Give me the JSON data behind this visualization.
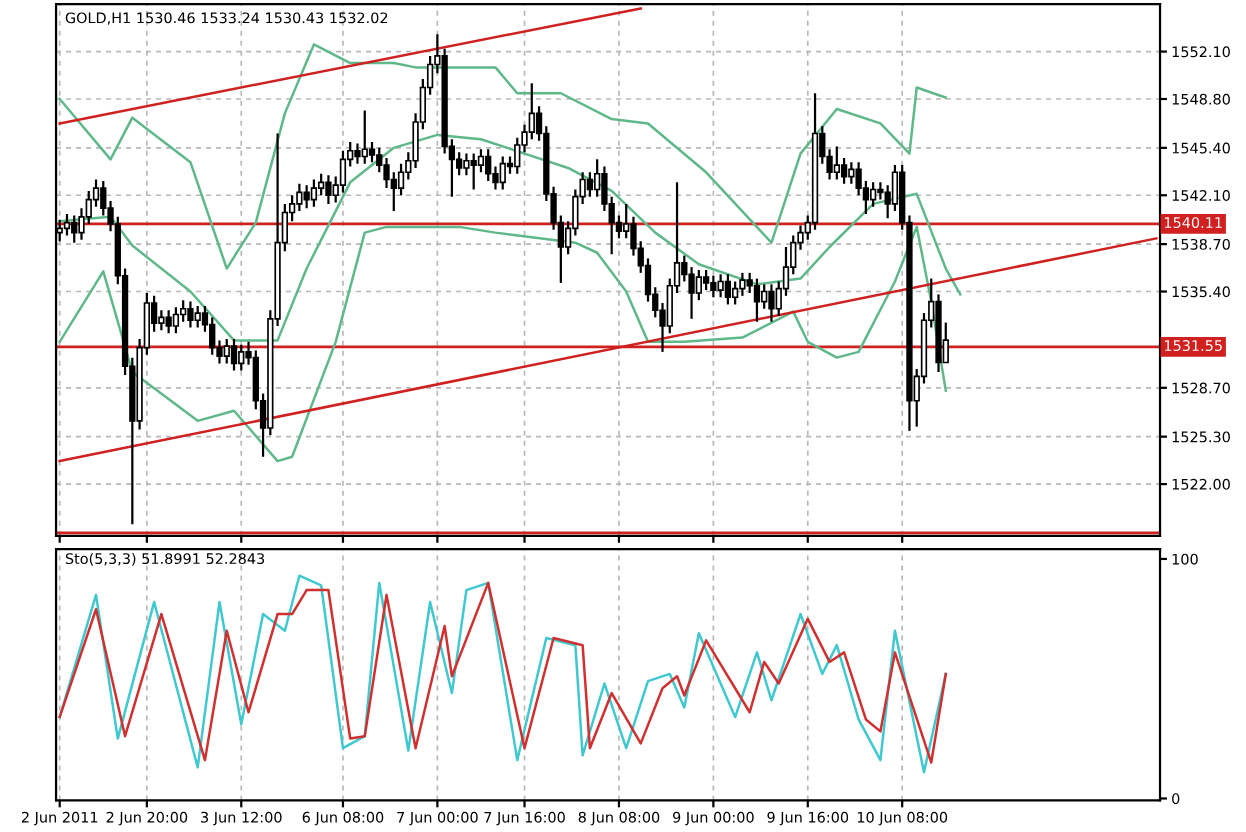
{
  "chart_data": [
    {
      "type": "candlestick",
      "title": "GOLD,H1 1530.46 1533.24 1530.43 1532.02",
      "categories": [
        null,
        null,
        null,
        null,
        null,
        null,
        null,
        null,
        null,
        null,
        null,
        null,
        null,
        null,
        null,
        null,
        null,
        null,
        null,
        null,
        null,
        null,
        null,
        null,
        null,
        null,
        null,
        null,
        null,
        null,
        null,
        null,
        null,
        null,
        null,
        null,
        null,
        null,
        null,
        null,
        null,
        null,
        null,
        null,
        null,
        null,
        null,
        null,
        null,
        null,
        null,
        null,
        null,
        null,
        null,
        null,
        null,
        null,
        null,
        null,
        null,
        null,
        null,
        null,
        null,
        null,
        null,
        null,
        null,
        null,
        null,
        null,
        null,
        null,
        null,
        null,
        null,
        null,
        null,
        null,
        null,
        null,
        null,
        null,
        null,
        null,
        null,
        null,
        null,
        null,
        null,
        null,
        null,
        null,
        null,
        null,
        null,
        null,
        null,
        null,
        null,
        null,
        null,
        null,
        null,
        null,
        null,
        null,
        null,
        null,
        null,
        null,
        null,
        null,
        null,
        null,
        null,
        null,
        null,
        null,
        null,
        null,
        null,
        null,
        null,
        null,
        null,
        null,
        null,
        null,
        null,
        null,
        null,
        null,
        null,
        null,
        null,
        null,
        null,
        null,
        null,
        null,
        null,
        null,
        null,
        null,
        null,
        null,
        null,
        null,
        null,
        null
      ],
      "ohlc": [
        [
          1539.5,
          1540.4,
          1538.9,
          1539.8
        ],
        [
          1539.8,
          1540.8,
          1539.3,
          1540.2
        ],
        [
          1540.2,
          1540.7,
          1538.8,
          1539.5
        ],
        [
          1539.5,
          1541.2,
          1539.0,
          1540.6
        ],
        [
          1540.6,
          1542.4,
          1540.1,
          1541.8
        ],
        [
          1541.8,
          1543.2,
          1541.3,
          1542.6
        ],
        [
          1542.6,
          1543.1,
          1540.7,
          1541.2
        ],
        [
          1541.2,
          1541.7,
          1539.6,
          1540.1
        ],
        [
          1540.1,
          1540.6,
          1535.9,
          1536.5
        ],
        [
          1536.5,
          1537.0,
          1529.6,
          1530.2
        ],
        [
          1530.2,
          1530.8,
          1519.2,
          1526.4
        ],
        [
          1526.4,
          1532.1,
          1525.8,
          1531.5
        ],
        [
          1531.5,
          1535.3,
          1531.0,
          1534.6
        ],
        [
          1534.6,
          1535.1,
          1532.6,
          1533.2
        ],
        [
          1533.2,
          1534.1,
          1532.7,
          1533.6
        ],
        [
          1533.6,
          1534.1,
          1532.5,
          1533.0
        ],
        [
          1533.0,
          1534.3,
          1532.5,
          1533.8
        ],
        [
          1533.8,
          1534.8,
          1533.3,
          1534.2
        ],
        [
          1534.2,
          1534.7,
          1532.9,
          1533.4
        ],
        [
          1533.4,
          1534.4,
          1532.9,
          1533.9
        ],
        [
          1533.9,
          1534.4,
          1532.6,
          1533.1
        ],
        [
          1533.1,
          1533.6,
          1531.0,
          1531.5
        ],
        [
          1531.5,
          1532.0,
          1530.4,
          1530.9
        ],
        [
          1530.9,
          1532.1,
          1530.4,
          1531.6
        ],
        [
          1531.6,
          1532.1,
          1529.9,
          1530.4
        ],
        [
          1530.4,
          1531.7,
          1529.9,
          1531.2
        ],
        [
          1531.2,
          1531.9,
          1530.3,
          1530.8
        ],
        [
          1530.8,
          1531.3,
          1527.2,
          1527.8
        ],
        [
          1527.8,
          1528.3,
          1523.9,
          1525.9
        ],
        [
          1525.9,
          1534.1,
          1525.4,
          1533.5
        ],
        [
          1533.5,
          1546.4,
          1533.0,
          1538.8
        ],
        [
          1538.8,
          1541.5,
          1538.2,
          1540.9
        ],
        [
          1540.9,
          1542.1,
          1540.3,
          1541.5
        ],
        [
          1541.5,
          1542.9,
          1541.0,
          1542.3
        ],
        [
          1542.3,
          1542.8,
          1541.2,
          1541.8
        ],
        [
          1541.8,
          1543.2,
          1541.3,
          1542.6
        ],
        [
          1542.6,
          1543.6,
          1542.1,
          1543.0
        ],
        [
          1543.0,
          1543.5,
          1541.5,
          1542.1
        ],
        [
          1542.1,
          1543.4,
          1541.6,
          1542.8
        ],
        [
          1542.8,
          1545.2,
          1542.3,
          1544.6
        ],
        [
          1544.6,
          1545.8,
          1544.1,
          1545.2
        ],
        [
          1545.2,
          1545.7,
          1544.3,
          1544.8
        ],
        [
          1544.8,
          1548.0,
          1544.3,
          1545.3
        ],
        [
          1545.3,
          1545.8,
          1544.4,
          1544.9
        ],
        [
          1544.9,
          1545.4,
          1543.7,
          1544.2
        ],
        [
          1544.2,
          1544.7,
          1542.6,
          1543.2
        ],
        [
          1543.2,
          1543.7,
          1541.0,
          1542.6
        ],
        [
          1542.6,
          1544.3,
          1542.1,
          1543.7
        ],
        [
          1543.7,
          1545.1,
          1543.2,
          1544.5
        ],
        [
          1544.5,
          1547.8,
          1544.0,
          1547.2
        ],
        [
          1547.2,
          1550.2,
          1546.7,
          1549.6
        ],
        [
          1549.6,
          1551.8,
          1549.1,
          1551.2
        ],
        [
          1551.2,
          1553.3,
          1550.6,
          1551.8
        ],
        [
          1551.8,
          1552.3,
          1545.0,
          1545.5
        ],
        [
          1545.5,
          1546.0,
          1542.0,
          1544.6
        ],
        [
          1544.6,
          1545.1,
          1543.5,
          1544.0
        ],
        [
          1544.0,
          1545.0,
          1543.5,
          1544.5
        ],
        [
          1544.5,
          1545.0,
          1542.5,
          1544.2
        ],
        [
          1544.2,
          1545.3,
          1543.7,
          1544.8
        ],
        [
          1544.8,
          1545.3,
          1543.1,
          1543.6
        ],
        [
          1543.6,
          1544.1,
          1542.5,
          1543.0
        ],
        [
          1543.0,
          1544.8,
          1542.5,
          1544.3
        ],
        [
          1544.3,
          1544.8,
          1543.6,
          1544.1
        ],
        [
          1544.1,
          1546.1,
          1543.6,
          1545.6
        ],
        [
          1545.6,
          1547.0,
          1545.1,
          1546.5
        ],
        [
          1546.5,
          1549.9,
          1546.0,
          1547.8
        ],
        [
          1547.8,
          1548.3,
          1545.9,
          1546.4
        ],
        [
          1546.4,
          1546.9,
          1541.7,
          1542.2
        ],
        [
          1542.2,
          1542.7,
          1539.7,
          1540.2
        ],
        [
          1540.2,
          1540.7,
          1536.0,
          1538.5
        ],
        [
          1538.5,
          1540.3,
          1538.0,
          1539.8
        ],
        [
          1539.8,
          1542.5,
          1539.3,
          1542.0
        ],
        [
          1542.0,
          1543.7,
          1541.5,
          1543.2
        ],
        [
          1543.2,
          1543.7,
          1542.0,
          1542.5
        ],
        [
          1542.5,
          1544.6,
          1542.0,
          1543.6
        ],
        [
          1543.6,
          1544.1,
          1541.0,
          1541.5
        ],
        [
          1541.5,
          1542.0,
          1538.0,
          1540.2
        ],
        [
          1540.2,
          1540.7,
          1539.1,
          1539.6
        ],
        [
          1539.6,
          1541.5,
          1539.1,
          1540.1
        ],
        [
          1540.1,
          1540.6,
          1537.9,
          1538.4
        ],
        [
          1538.4,
          1538.9,
          1536.7,
          1537.2
        ],
        [
          1537.2,
          1537.7,
          1534.7,
          1535.2
        ],
        [
          1535.2,
          1535.7,
          1533.6,
          1534.1
        ],
        [
          1534.1,
          1534.6,
          1531.2,
          1533.0
        ],
        [
          1533.0,
          1536.3,
          1532.5,
          1535.8
        ],
        [
          1535.8,
          1543.0,
          1535.3,
          1537.4
        ],
        [
          1537.4,
          1537.9,
          1536.1,
          1536.6
        ],
        [
          1536.6,
          1537.1,
          1533.5,
          1535.3
        ],
        [
          1535.3,
          1536.9,
          1534.8,
          1536.4
        ],
        [
          1536.4,
          1536.9,
          1535.5,
          1536.0
        ],
        [
          1536.0,
          1536.5,
          1535.0,
          1535.5
        ],
        [
          1535.5,
          1536.6,
          1535.0,
          1536.1
        ],
        [
          1536.1,
          1536.6,
          1534.5,
          1535.0
        ],
        [
          1535.0,
          1536.1,
          1534.5,
          1535.6
        ],
        [
          1535.6,
          1536.7,
          1535.1,
          1536.2
        ],
        [
          1536.2,
          1536.7,
          1535.3,
          1535.8
        ],
        [
          1535.8,
          1536.3,
          1533.3,
          1534.7
        ],
        [
          1534.7,
          1535.9,
          1534.2,
          1535.4
        ],
        [
          1535.4,
          1535.9,
          1533.3,
          1534.2
        ],
        [
          1534.2,
          1536.1,
          1533.7,
          1535.6
        ],
        [
          1535.6,
          1538.5,
          1535.1,
          1537.1
        ],
        [
          1537.1,
          1539.3,
          1536.6,
          1538.8
        ],
        [
          1538.8,
          1540.0,
          1538.3,
          1539.5
        ],
        [
          1539.5,
          1540.7,
          1539.0,
          1540.2
        ],
        [
          1540.2,
          1549.2,
          1539.7,
          1546.4
        ],
        [
          1546.4,
          1546.9,
          1544.3,
          1544.8
        ],
        [
          1544.8,
          1545.3,
          1543.2,
          1543.7
        ],
        [
          1543.7,
          1545.5,
          1543.2,
          1544.2
        ],
        [
          1544.2,
          1544.7,
          1542.9,
          1543.4
        ],
        [
          1543.4,
          1544.4,
          1542.9,
          1543.9
        ],
        [
          1543.9,
          1544.4,
          1542.1,
          1542.6
        ],
        [
          1542.6,
          1543.1,
          1540.8,
          1541.8
        ],
        [
          1541.8,
          1543.0,
          1541.3,
          1542.5
        ],
        [
          1542.5,
          1543.0,
          1541.8,
          1542.3
        ],
        [
          1542.3,
          1542.8,
          1540.5,
          1541.5
        ],
        [
          1541.5,
          1544.2,
          1541.0,
          1543.7
        ],
        [
          1543.7,
          1544.2,
          1539.7,
          1540.2
        ],
        [
          1540.2,
          1540.7,
          1525.7,
          1527.8
        ],
        [
          1527.8,
          1530.0,
          1526.0,
          1529.5
        ],
        [
          1529.5,
          1533.9,
          1529.0,
          1533.4
        ],
        [
          1533.4,
          1536.3,
          1532.9,
          1534.7
        ],
        [
          1534.7,
          1535.2,
          1529.8,
          1530.46
        ],
        [
          1530.46,
          1533.24,
          1530.43,
          1532.02
        ],
        null,
        null,
        null,
        null,
        null,
        null,
        null,
        null,
        null,
        null,
        null,
        null,
        null,
        null,
        null,
        null,
        null,
        null,
        null,
        null,
        null,
        null,
        null,
        null,
        null,
        null,
        null,
        null,
        null
      ],
      "series": [
        {
          "type": "line",
          "color": "#5fb88a",
          "values": [
            1548.8,
            null,
            null,
            null,
            null,
            null,
            null,
            1544.6,
            null,
            null,
            1547.5,
            null,
            null,
            null,
            null,
            null,
            null,
            null,
            1544.4,
            null,
            null,
            null,
            null,
            1537.0,
            null,
            null,
            null,
            1540.2,
            null,
            null,
            null,
            1547.8,
            null,
            null,
            null,
            1552.6,
            null,
            null,
            null,
            null,
            1551.3,
            null,
            null,
            null,
            null,
            null,
            1551.3,
            null,
            null,
            1551.0,
            null,
            null,
            null,
            null,
            null,
            null,
            null,
            null,
            null,
            null,
            1551.0,
            null,
            null,
            1549.2,
            null,
            null,
            null,
            null,
            null,
            1549.2,
            null,
            null,
            null,
            null,
            null,
            null,
            1547.4,
            null,
            null,
            null,
            null,
            1547.1,
            null,
            null,
            null,
            null,
            null,
            null,
            null,
            1543.7,
            null,
            null,
            null,
            null,
            null,
            null,
            null,
            null,
            1538.8,
            null,
            null,
            null,
            1545.0,
            null,
            null,
            null,
            null,
            1548.1,
            null,
            null,
            null,
            null,
            null,
            1547.1,
            null,
            null,
            null,
            1545.0,
            1549.6,
            null,
            null,
            null,
            1548.9,
            null,
            null,
            null,
            null,
            null,
            null,
            null,
            null,
            null,
            null,
            null,
            null,
            null,
            null,
            null,
            null,
            null,
            null,
            null,
            null,
            null,
            null,
            null,
            null,
            null,
            null,
            null,
            null,
            null
          ]
        },
        {
          "type": "line",
          "color": "#5fb88a",
          "values": [
            1540.3,
            null,
            null,
            null,
            null,
            null,
            null,
            1540.6,
            null,
            null,
            1538.6,
            null,
            null,
            null,
            null,
            null,
            null,
            null,
            1535.4,
            null,
            null,
            null,
            null,
            null,
            1532.0,
            null,
            null,
            null,
            null,
            null,
            1532.0,
            null,
            null,
            null,
            1537.0,
            null,
            null,
            null,
            null,
            null,
            1543.0,
            null,
            null,
            null,
            null,
            null,
            1545.4,
            null,
            null,
            null,
            null,
            null,
            1546.3,
            null,
            null,
            null,
            null,
            null,
            1546.0,
            null,
            null,
            null,
            null,
            null,
            1545.0,
            null,
            null,
            null,
            null,
            null,
            1544.0,
            null,
            null,
            null,
            null,
            null,
            1542.4,
            null,
            null,
            null,
            null,
            null,
            1539.5,
            null,
            null,
            null,
            null,
            null,
            1537.3,
            null,
            null,
            null,
            null,
            null,
            null,
            null,
            1535.9,
            null,
            null,
            null,
            null,
            null,
            1536.3,
            null,
            null,
            null,
            1538.5,
            null,
            null,
            null,
            null,
            null,
            1541.5,
            null,
            null,
            null,
            null,
            null,
            1542.2,
            null,
            null,
            null,
            1537.0,
            null,
            1535.2,
            null,
            null,
            null,
            null,
            null,
            null,
            null,
            null,
            null,
            null,
            null,
            null,
            null,
            null,
            null,
            null,
            null,
            null,
            null,
            null,
            null,
            null,
            null,
            null,
            null,
            null,
            null
          ]
        },
        {
          "type": "line",
          "color": "#5fb88a",
          "values": [
            1531.9,
            null,
            null,
            null,
            null,
            null,
            1536.8,
            null,
            null,
            null,
            1529.8,
            null,
            null,
            null,
            null,
            null,
            null,
            null,
            null,
            1526.4,
            null,
            null,
            null,
            null,
            1527.1,
            null,
            null,
            null,
            null,
            null,
            1523.6,
            null,
            1523.9,
            null,
            null,
            null,
            null,
            null,
            1531.9,
            null,
            null,
            null,
            1539.5,
            null,
            null,
            1539.9,
            null,
            null,
            null,
            null,
            null,
            null,
            null,
            null,
            null,
            1539.9,
            null,
            null,
            null,
            null,
            1539.5,
            null,
            null,
            null,
            null,
            null,
            null,
            null,
            null,
            null,
            null,
            1538.8,
            null,
            null,
            1538.1,
            null,
            null,
            null,
            1535.4,
            null,
            null,
            1531.9,
            null,
            null,
            null,
            null,
            1531.9,
            null,
            null,
            null,
            null,
            null,
            null,
            null,
            1532.2,
            null,
            null,
            null,
            null,
            null,
            null,
            1534.0,
            null,
            1531.9,
            null,
            null,
            null,
            1530.8,
            null,
            null,
            1531.2,
            null,
            null,
            null,
            null,
            1536.1,
            null,
            null,
            1539.9,
            null,
            1534.7,
            null,
            1528.5,
            null,
            null,
            null,
            null,
            null,
            null,
            null,
            null,
            null,
            null,
            null,
            null,
            null,
            null,
            null,
            null,
            null,
            null,
            null,
            null,
            null,
            null,
            null,
            null,
            null,
            null,
            null,
            null,
            null
          ]
        },
        {
          "type": "line",
          "color": "#d02020",
          "values": [
            1547.1,
            null,
            null,
            null,
            null,
            null,
            null,
            null,
            null,
            null,
            null,
            null,
            null,
            null,
            null,
            null,
            null,
            null,
            null,
            null,
            null,
            null,
            null,
            null,
            null,
            null,
            null,
            null,
            null,
            null,
            null,
            null,
            null,
            null,
            null,
            null,
            null,
            null,
            null,
            null,
            null,
            null,
            null,
            null,
            null,
            null,
            null,
            null,
            null,
            null,
            null,
            null,
            null,
            null,
            null,
            null,
            null,
            null,
            null,
            null,
            null,
            null,
            null,
            null,
            null,
            null,
            null,
            null,
            null,
            null,
            null,
            null,
            null,
            null,
            null,
            null,
            null,
            null,
            null,
            null,
            1555.1,
            null,
            null,
            null,
            null,
            null,
            null,
            null,
            null,
            null,
            null,
            null,
            null,
            null,
            null,
            null,
            null,
            null,
            null,
            null,
            null,
            null,
            null,
            null,
            null,
            null,
            null,
            null,
            null,
            null,
            null,
            null,
            null,
            null,
            null,
            null,
            null,
            null,
            null,
            null,
            null,
            null,
            null,
            null,
            null,
            null,
            null,
            null,
            null,
            null,
            null,
            null,
            null,
            null,
            null,
            null,
            null,
            null,
            null,
            null,
            null,
            null,
            null,
            null,
            null,
            null,
            null,
            null,
            null,
            null,
            null,
            null
          ]
        },
        {
          "type": "line",
          "color": "#d02020",
          "values": [
            1523.6,
            null,
            null,
            null,
            null,
            null,
            null,
            null,
            null,
            null,
            null,
            null,
            null,
            null,
            null,
            null,
            null,
            null,
            null,
            null,
            null,
            null,
            null,
            null,
            null,
            null,
            null,
            null,
            null,
            null,
            null,
            null,
            null,
            null,
            null,
            null,
            null,
            null,
            null,
            null,
            null,
            null,
            null,
            null,
            null,
            null,
            null,
            null,
            null,
            null,
            null,
            null,
            null,
            null,
            null,
            null,
            null,
            null,
            null,
            null,
            null,
            null,
            null,
            null,
            null,
            null,
            null,
            null,
            null,
            null,
            null,
            null,
            null,
            null,
            null,
            null,
            null,
            null,
            null,
            null,
            null,
            null,
            null,
            null,
            null,
            null,
            null,
            null,
            null,
            null,
            null,
            null,
            null,
            null,
            null,
            null,
            null,
            null,
            null,
            null,
            null,
            null,
            null,
            null,
            null,
            null,
            null,
            null,
            null,
            null,
            null,
            null,
            null,
            null,
            null,
            null,
            null,
            null,
            null,
            null,
            null,
            null,
            null,
            null,
            null,
            null,
            null,
            null,
            null,
            null,
            null,
            null,
            null,
            null,
            null,
            null,
            null,
            null,
            null,
            null,
            null,
            null,
            null,
            null,
            null,
            null,
            null,
            null,
            null,
            null,
            null,
            1539.1
          ]
        }
      ],
      "ref_lines": [
        {
          "axis": "y",
          "value": 1540.11,
          "label": "1540.11",
          "color": "#d02020"
        },
        {
          "axis": "y",
          "value": 1531.55,
          "label": "1531.55",
          "color": "#d02020"
        },
        {
          "axis": "y",
          "value": 1518.6,
          "color": "#d02020"
        }
      ],
      "ylim": [
        1518.4,
        1555.4
      ],
      "yticks": [
        {
          "value": 1552.1,
          "label": "1552.10"
        },
        {
          "value": 1548.8,
          "label": "1548.80"
        },
        {
          "value": 1545.4,
          "label": "1545.40"
        },
        {
          "value": 1542.1,
          "label": "1542.10"
        },
        {
          "value": 1538.7,
          "label": "1538.70"
        },
        {
          "value": 1535.4,
          "label": "1535.40"
        },
        {
          "value": 1528.7,
          "label": "1528.70"
        },
        {
          "value": 1525.3,
          "label": "1525.30"
        },
        {
          "value": 1522,
          "label": "1522.00"
        }
      ],
      "grid": true,
      "tick_labels": "y"
    },
    {
      "type": "line",
      "title": "Sto(5,3,3) 51.8991 52.2843",
      "categories": [
        "2 Jun 2011",
        null,
        null,
        null,
        null,
        null,
        null,
        null,
        null,
        null,
        null,
        null,
        "2 Jun 20:00",
        null,
        null,
        null,
        null,
        null,
        null,
        null,
        null,
        null,
        null,
        null,
        null,
        "3 Jun 12:00",
        null,
        null,
        null,
        null,
        null,
        null,
        null,
        null,
        null,
        null,
        null,
        null,
        null,
        "6 Jun 08:00",
        null,
        null,
        null,
        null,
        null,
        null,
        null,
        null,
        null,
        null,
        null,
        null,
        "7 Jun 00:00",
        null,
        null,
        null,
        null,
        null,
        null,
        null,
        null,
        null,
        null,
        null,
        "7 Jun 16:00",
        null,
        null,
        null,
        null,
        null,
        null,
        null,
        null,
        null,
        null,
        null,
        null,
        "8 Jun 08:00",
        null,
        null,
        null,
        null,
        null,
        null,
        null,
        null,
        null,
        null,
        null,
        null,
        "9 Jun 00:00",
        null,
        null,
        null,
        null,
        null,
        null,
        null,
        null,
        null,
        null,
        null,
        null,
        "9 Jun 16:00",
        null,
        null,
        null,
        null,
        null,
        null,
        null,
        null,
        null,
        null,
        null,
        null,
        "10 Jun 08:00",
        null,
        null,
        null,
        null,
        null,
        null,
        null,
        null,
        null,
        null,
        null,
        null,
        null,
        null,
        null,
        null,
        null,
        null,
        null,
        null,
        null,
        null,
        null,
        null,
        null,
        null,
        null,
        null,
        null,
        null,
        null,
        null,
        null,
        null,
        null
      ],
      "series": [
        {
          "color": "#40c8d0",
          "values": [
            34,
            null,
            null,
            null,
            null,
            85,
            null,
            null,
            25,
            null,
            null,
            null,
            null,
            82,
            null,
            null,
            null,
            null,
            null,
            13,
            null,
            null,
            82,
            null,
            null,
            31,
            null,
            null,
            77,
            null,
            null,
            70,
            null,
            93,
            null,
            null,
            89,
            null,
            null,
            21,
            null,
            null,
            26,
            null,
            90,
            null,
            null,
            null,
            20,
            null,
            null,
            82,
            null,
            null,
            44,
            null,
            87,
            null,
            null,
            90,
            null,
            null,
            null,
            16,
            null,
            null,
            null,
            67,
            null,
            null,
            null,
            64,
            18,
            null,
            null,
            48,
            null,
            null,
            21,
            null,
            null,
            49,
            null,
            null,
            52,
            null,
            38,
            null,
            69,
            null,
            null,
            null,
            null,
            34,
            null,
            null,
            61,
            null,
            41,
            null,
            null,
            null,
            77,
            null,
            null,
            52,
            null,
            64,
            null,
            null,
            33,
            null,
            null,
            16,
            null,
            70,
            null,
            null,
            null,
            11,
            null,
            null,
            52,
            null,
            null,
            null,
            null,
            null,
            null,
            null,
            null,
            null,
            null,
            null,
            null,
            null,
            null,
            null,
            null,
            null,
            null,
            null,
            null,
            null,
            null,
            null,
            null,
            null,
            null,
            null,
            null,
            null
          ]
        },
        {
          "color": "#d03030",
          "values": [
            34,
            null,
            null,
            null,
            null,
            79,
            null,
            null,
            null,
            26,
            null,
            null,
            null,
            null,
            77,
            null,
            null,
            null,
            null,
            null,
            16,
            null,
            null,
            70,
            null,
            null,
            36,
            null,
            null,
            null,
            77,
            null,
            77,
            null,
            87,
            null,
            null,
            87,
            null,
            null,
            25,
            null,
            26,
            null,
            null,
            85,
            null,
            null,
            null,
            21,
            null,
            null,
            null,
            72,
            51,
            null,
            null,
            null,
            null,
            90,
            null,
            null,
            null,
            null,
            21,
            null,
            null,
            null,
            67,
            null,
            null,
            null,
            64,
            21,
            null,
            null,
            44,
            null,
            null,
            null,
            23,
            null,
            null,
            46,
            null,
            51,
            43,
            null,
            null,
            66,
            null,
            null,
            null,
            null,
            null,
            36,
            null,
            57,
            null,
            48,
            null,
            null,
            null,
            75,
            null,
            null,
            57,
            null,
            61,
            null,
            null,
            33,
            null,
            28,
            null,
            61,
            null,
            null,
            null,
            null,
            15,
            null,
            52,
            null,
            null,
            null,
            null,
            null,
            null,
            null,
            null,
            null,
            null,
            null,
            null,
            null,
            null,
            null,
            null,
            null,
            null,
            null,
            null,
            null,
            null,
            null,
            null,
            null,
            null,
            null,
            null,
            null
          ]
        }
      ],
      "ylim": [
        -0.8,
        104.1
      ],
      "yticks": [
        0,
        100
      ],
      "grid": "x"
    }
  ]
}
